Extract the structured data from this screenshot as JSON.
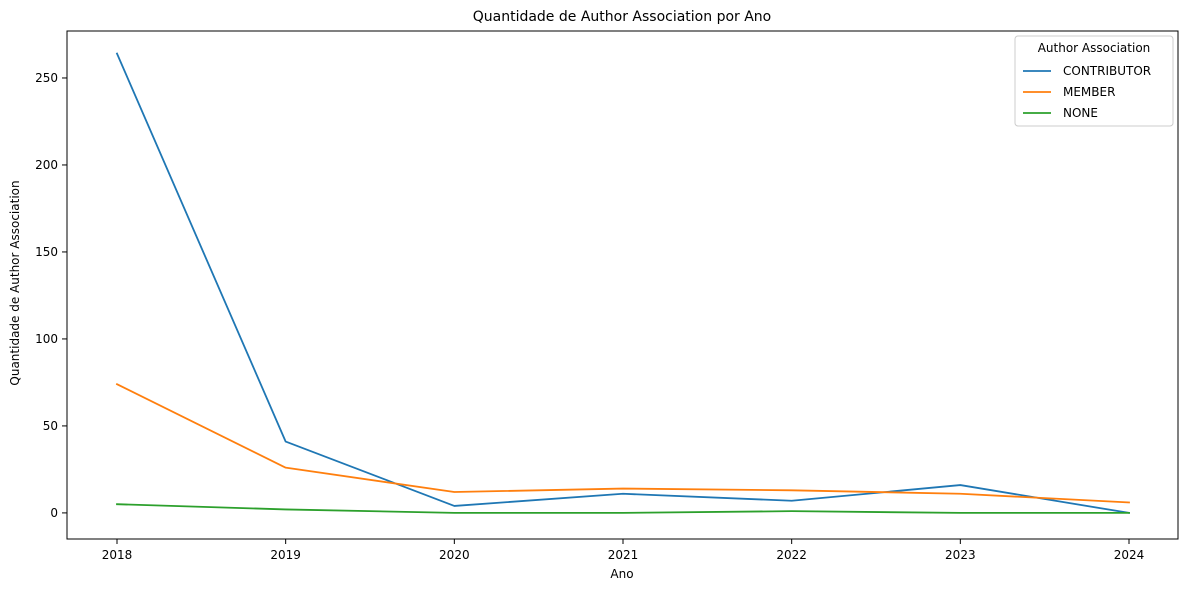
{
  "chart_data": {
    "type": "line",
    "title": "Quantidade de Author Association por Ano",
    "xlabel": "Ano",
    "ylabel": "Quantidade de Author Association",
    "x": [
      2018,
      2019,
      2020,
      2021,
      2022,
      2023,
      2024
    ],
    "xticks": [
      "2018",
      "2019",
      "2020",
      "2021",
      "2022",
      "2023",
      "2024"
    ],
    "ylim": [
      -15,
      277
    ],
    "yticks": [
      0,
      50,
      100,
      150,
      200,
      250
    ],
    "ytick_labels": [
      "0",
      "50",
      "100",
      "150",
      "200",
      "250"
    ],
    "grid": false,
    "legend": {
      "title": "Author Association",
      "position": "top-right"
    },
    "series": [
      {
        "name": "CONTRIBUTOR",
        "color": "#1f77b4",
        "values": [
          264,
          41,
          4,
          11,
          7,
          16,
          0
        ]
      },
      {
        "name": "MEMBER",
        "color": "#ff7f0e",
        "values": [
          74,
          26,
          12,
          14,
          13,
          11,
          6
        ]
      },
      {
        "name": "NONE",
        "color": "#2ca02c",
        "values": [
          5,
          2,
          0,
          0,
          1,
          0,
          0
        ]
      }
    ]
  }
}
